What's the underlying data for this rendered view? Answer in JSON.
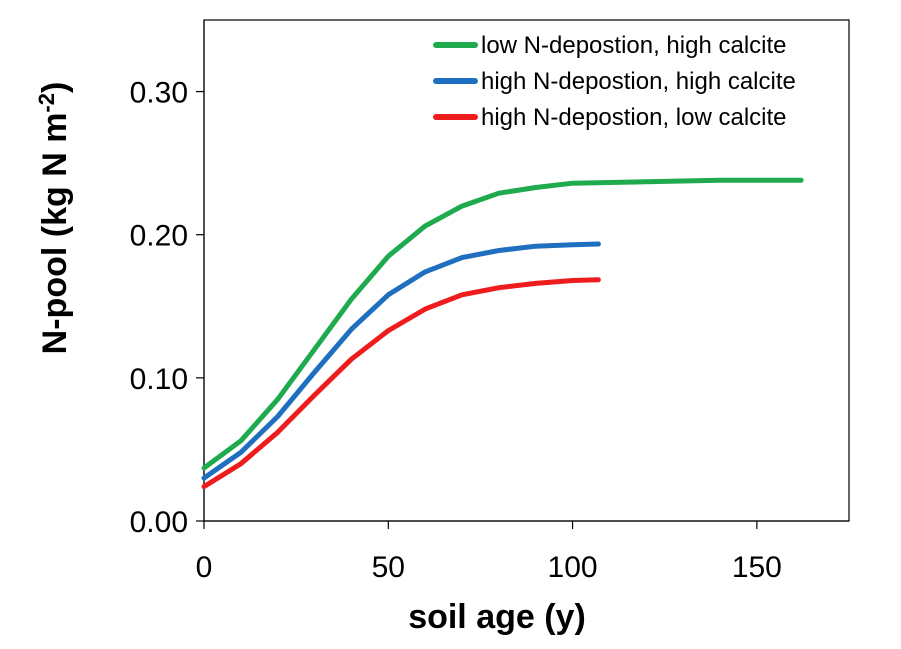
{
  "chart_data": {
    "type": "line",
    "xlabel": "soil age (y)",
    "ylabel": {
      "main": "N-pool (kg N m",
      "superscript": "-2",
      "close": ")"
    },
    "xlim": [
      0,
      175
    ],
    "ylim": [
      0,
      0.35
    ],
    "xticks": [
      0,
      50,
      100,
      150
    ],
    "xtick_labels": [
      "0",
      "50",
      "100",
      "150"
    ],
    "yticks": [
      0,
      0.1,
      0.2,
      0.3
    ],
    "ytick_labels": [
      "0.00",
      "0.10",
      "0.20",
      "0.30"
    ],
    "grid": false,
    "legend_position": "top-right",
    "series": [
      {
        "name": "low N-depostion, high calcite",
        "color": "#1faa4e",
        "x": [
          0,
          10,
          20,
          30,
          40,
          50,
          60,
          70,
          80,
          90,
          100,
          110,
          120,
          130,
          140,
          150,
          162
        ],
        "y": [
          0.037,
          0.056,
          0.085,
          0.12,
          0.155,
          0.185,
          0.206,
          0.22,
          0.229,
          0.233,
          0.236,
          0.2365,
          0.237,
          0.2375,
          0.238,
          0.238,
          0.238
        ]
      },
      {
        "name": "high N-depostion, high calcite",
        "color": "#1f6fc1",
        "x": [
          0,
          10,
          20,
          30,
          40,
          50,
          60,
          70,
          80,
          90,
          100,
          107
        ],
        "y": [
          0.03,
          0.048,
          0.073,
          0.104,
          0.134,
          0.158,
          0.174,
          0.184,
          0.189,
          0.192,
          0.193,
          0.1935
        ]
      },
      {
        "name": "high N-depostion, low calcite",
        "color": "#ee1c1c",
        "x": [
          0,
          10,
          20,
          30,
          40,
          50,
          60,
          70,
          80,
          90,
          100,
          107
        ],
        "y": [
          0.024,
          0.04,
          0.062,
          0.088,
          0.113,
          0.133,
          0.148,
          0.158,
          0.163,
          0.166,
          0.168,
          0.1685
        ]
      }
    ]
  }
}
